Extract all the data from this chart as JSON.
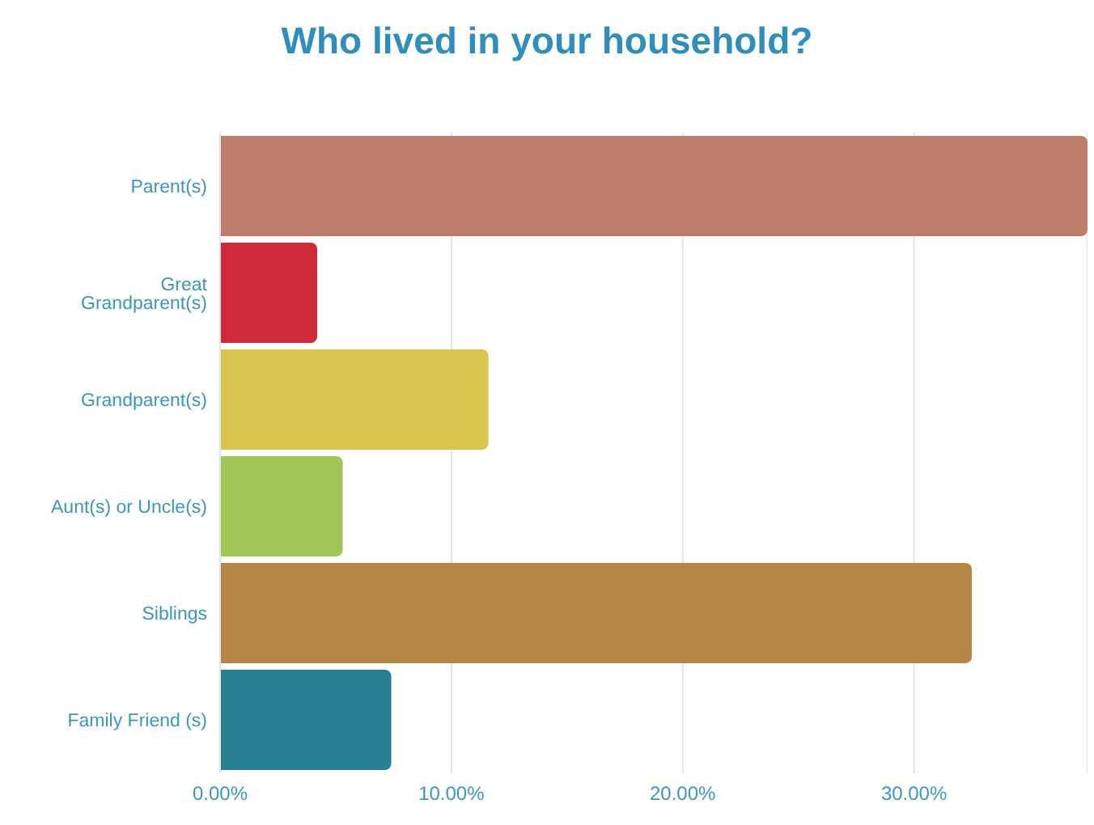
{
  "chart_data": {
    "type": "bar",
    "orientation": "horizontal",
    "title": "Who lived in your household?",
    "categories": [
      "Parent(s)",
      "Great Grandparent(s)",
      "Grandparent(s)",
      "Aunt(s) or Uncle(s)",
      "Siblings",
      "Family Friend (s)"
    ],
    "values": [
      37.5,
      4.2,
      11.6,
      5.3,
      32.5,
      7.4
    ],
    "colors": [
      "#bc7d6a",
      "#cf2a3a",
      "#d9c44d",
      "#a2c655",
      "#b78645",
      "#287f92"
    ],
    "xlim": [
      0,
      37.5
    ],
    "xticks": [
      {
        "value": 0,
        "label": "0.00%"
      },
      {
        "value": 10,
        "label": "10.00%"
      },
      {
        "value": 20,
        "label": "20.00%"
      },
      {
        "value": 30,
        "label": "30.00%"
      }
    ],
    "grid": "x",
    "legend": false
  }
}
